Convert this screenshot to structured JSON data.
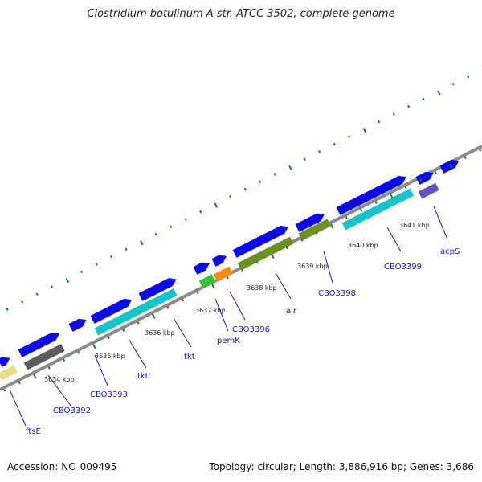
{
  "title": "Clostridium botulinum A str. ATCC 3502, complete genome",
  "footer": {
    "accession": "Accession: NC_009495",
    "summary": "Topology: circular; Length: 3,886,916 bp; Genes: 3,686"
  },
  "colors": {
    "cds_strand": "#0b0be8",
    "backbone": "#8a8a8a",
    "tick_green": "#1f7f1f",
    "label_blue": "#1515c8",
    "category_cyan": "#17c4c8",
    "category_olive": "#6a8f22",
    "category_gray": "#5b5b5b",
    "category_khaki": "#e8dc8a",
    "category_green": "#35c235",
    "category_orange": "#f28c12",
    "category_purple": "#6a4fc2"
  },
  "ticks": [
    {
      "label": "3634 kbp"
    },
    {
      "label": "3635 kbp"
    },
    {
      "label": "3636 kbp"
    },
    {
      "label": "3637 kbp"
    },
    {
      "label": "3638 kbp"
    },
    {
      "label": "3639 kbp"
    },
    {
      "label": "3640 kbp"
    },
    {
      "label": "3641 kbp"
    }
  ],
  "genes": [
    {
      "name": "ftsE"
    },
    {
      "name": "CBO3392"
    },
    {
      "name": "CBO3393"
    },
    {
      "name": "tkt'"
    },
    {
      "name": "tkt"
    },
    {
      "name": "pemK"
    },
    {
      "name": "CBO3396"
    },
    {
      "name": "alr"
    },
    {
      "name": "CBO3398"
    },
    {
      "name": "CBO3399"
    },
    {
      "name": "acpS"
    }
  ]
}
